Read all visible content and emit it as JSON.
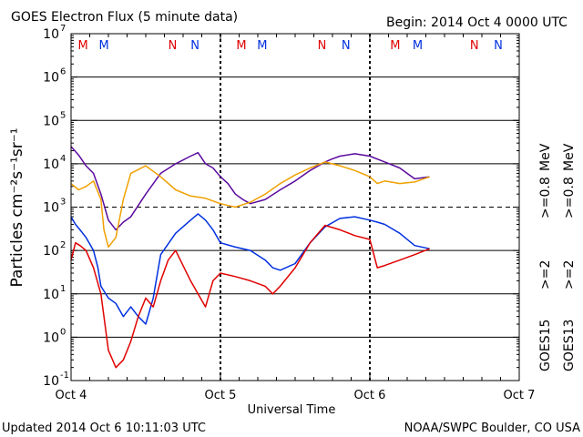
{
  "header": {
    "title": "GOES Electron Flux (5 minute data)",
    "begin": "Begin: 2014 Oct 4 0000 UTC"
  },
  "footer": {
    "updated": "Updated 2014 Oct  6 10:11:03 UTC",
    "credit": "NOAA/SWPC Boulder, CO USA"
  },
  "colors": {
    "goes15_08": "#5a0a9e",
    "goes13_08": "#f0a000",
    "goes15_2": "#0030e0",
    "goes13_2": "#e00000",
    "marker_m": "#e00000",
    "marker_n": "#0030e0"
  },
  "legend": {
    "goes15_label": "GOES15",
    "goes13_label": "GOES13",
    "goes15_2": ">=2",
    "goes13_2": ">=2",
    "goes15_08": ">=0.8",
    "goes13_08": ">=0.8",
    "unit": "MeV"
  },
  "chart_data": {
    "type": "line",
    "title": "GOES Electron Flux (5 minute data)",
    "xlabel": "Universal Time",
    "ylabel": "Particles cm⁻²s⁻¹sr⁻¹",
    "y_scale": "log",
    "ylim": [
      0.1,
      10000000
    ],
    "y_ticks": [
      {
        "value": 0.1,
        "base": "10",
        "exp": "-1"
      },
      {
        "value": 1,
        "base": "10",
        "exp": "0"
      },
      {
        "value": 10,
        "base": "10",
        "exp": "1"
      },
      {
        "value": 100,
        "base": "10",
        "exp": "2"
      },
      {
        "value": 1000,
        "base": "10",
        "exp": "3"
      },
      {
        "value": 10000,
        "base": "10",
        "exp": "4"
      },
      {
        "value": 100000,
        "base": "10",
        "exp": "5"
      },
      {
        "value": 1000000,
        "base": "10",
        "exp": "6"
      },
      {
        "value": 10000000,
        "base": "10",
        "exp": "7"
      }
    ],
    "x_unit": "days from 2014 Oct 4 0000 UTC",
    "xlim": [
      0,
      3
    ],
    "x_ticks": [
      {
        "value": 0,
        "label": "Oct 4"
      },
      {
        "value": 1,
        "label": "Oct 5"
      },
      {
        "value": 2,
        "label": "Oct 6"
      },
      {
        "value": 3,
        "label": "Oct 7"
      }
    ],
    "threshold": {
      "value": 1000,
      "style": "dashed"
    },
    "day_boundaries": [
      1,
      2
    ],
    "markers": [
      {
        "x": 0.08,
        "label": "M",
        "sat": "GOES13"
      },
      {
        "x": 0.22,
        "label": "M",
        "sat": "GOES15"
      },
      {
        "x": 0.68,
        "label": "N",
        "sat": "GOES13"
      },
      {
        "x": 0.83,
        "label": "N",
        "sat": "GOES15"
      },
      {
        "x": 1.14,
        "label": "M",
        "sat": "GOES13"
      },
      {
        "x": 1.28,
        "label": "M",
        "sat": "GOES15"
      },
      {
        "x": 1.68,
        "label": "N",
        "sat": "GOES13"
      },
      {
        "x": 1.84,
        "label": "N",
        "sat": "GOES15"
      },
      {
        "x": 2.17,
        "label": "M",
        "sat": "GOES13"
      },
      {
        "x": 2.32,
        "label": "M",
        "sat": "GOES15"
      },
      {
        "x": 2.7,
        "label": "N",
        "sat": "GOES13"
      },
      {
        "x": 2.86,
        "label": "N",
        "sat": "GOES15"
      }
    ],
    "series": [
      {
        "name": "GOES15 >=0.8 MeV",
        "key": "goes15_08",
        "x": [
          0,
          0.05,
          0.1,
          0.15,
          0.2,
          0.25,
          0.3,
          0.35,
          0.4,
          0.5,
          0.6,
          0.7,
          0.8,
          0.85,
          0.9,
          0.95,
          1.0,
          1.05,
          1.1,
          1.15,
          1.2,
          1.3,
          1.4,
          1.5,
          1.6,
          1.7,
          1.75,
          1.8,
          1.9,
          2.0,
          2.1,
          2.2,
          2.3,
          2.4
        ],
        "y": [
          25000,
          16000,
          9000,
          6000,
          2000,
          500,
          300,
          450,
          600,
          2000,
          6000,
          10000,
          15000,
          18000,
          10000,
          8000,
          5000,
          3500,
          2000,
          1500,
          1200,
          1500,
          2500,
          4000,
          7000,
          11000,
          13000,
          15000,
          17000,
          15000,
          11000,
          8000,
          4500,
          5000
        ]
      },
      {
        "name": "GOES13 >=0.8 MeV",
        "key": "goes13_08",
        "x": [
          0,
          0.05,
          0.1,
          0.15,
          0.2,
          0.22,
          0.25,
          0.3,
          0.35,
          0.4,
          0.5,
          0.6,
          0.7,
          0.8,
          0.9,
          1.0,
          1.1,
          1.2,
          1.3,
          1.4,
          1.5,
          1.6,
          1.7,
          1.8,
          1.9,
          2.0,
          2.05,
          2.1,
          2.2,
          2.3,
          2.4
        ],
        "y": [
          3500,
          2500,
          3000,
          4000,
          1500,
          300,
          120,
          200,
          1500,
          6000,
          9000,
          5000,
          2500,
          1800,
          1600,
          1200,
          1000,
          1300,
          2000,
          3500,
          5500,
          8000,
          11000,
          9000,
          7000,
          5000,
          3500,
          4000,
          3500,
          3800,
          5000
        ]
      },
      {
        "name": "GOES15 >=2 MeV",
        "key": "goes15_2",
        "x": [
          0,
          0.03,
          0.06,
          0.1,
          0.15,
          0.18,
          0.2,
          0.25,
          0.3,
          0.35,
          0.4,
          0.45,
          0.5,
          0.55,
          0.6,
          0.7,
          0.8,
          0.85,
          0.9,
          0.95,
          1.0,
          1.1,
          1.2,
          1.3,
          1.35,
          1.4,
          1.5,
          1.6,
          1.7,
          1.8,
          1.9,
          2.0,
          2.05,
          2.1,
          2.2,
          2.3,
          2.4
        ],
        "y": [
          600,
          400,
          300,
          200,
          100,
          40,
          15,
          8,
          6,
          3,
          5,
          3,
          2,
          8,
          80,
          250,
          500,
          700,
          500,
          300,
          150,
          120,
          100,
          60,
          40,
          35,
          50,
          150,
          350,
          550,
          600,
          500,
          450,
          400,
          250,
          130,
          110
        ]
      },
      {
        "name": "GOES13 >=2 MeV",
        "key": "goes13_2",
        "x": [
          0,
          0.03,
          0.06,
          0.1,
          0.15,
          0.2,
          0.25,
          0.3,
          0.35,
          0.4,
          0.45,
          0.5,
          0.55,
          0.6,
          0.65,
          0.7,
          0.8,
          0.85,
          0.9,
          0.95,
          1.0,
          1.1,
          1.2,
          1.3,
          1.35,
          1.4,
          1.5,
          1.6,
          1.7,
          1.8,
          1.9,
          2.0,
          2.05,
          2.1,
          2.2,
          2.3,
          2.4
        ],
        "y": [
          60,
          150,
          130,
          100,
          40,
          10,
          0.5,
          0.2,
          0.3,
          0.8,
          3,
          8,
          5,
          20,
          60,
          100,
          20,
          10,
          5,
          20,
          30,
          25,
          20,
          15,
          10,
          15,
          40,
          150,
          380,
          300,
          220,
          180,
          40,
          45,
          60,
          80,
          110
        ]
      }
    ]
  }
}
